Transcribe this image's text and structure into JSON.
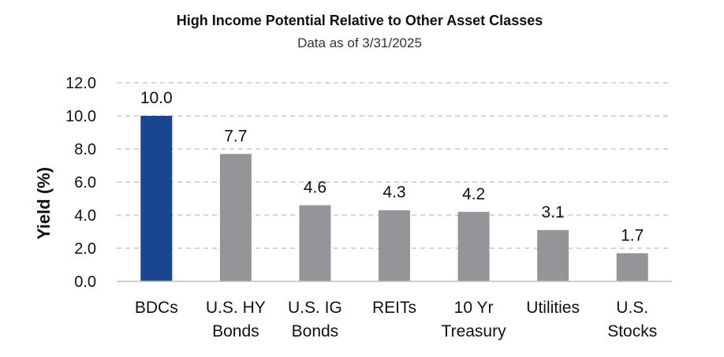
{
  "chart_data": {
    "type": "bar",
    "title": "High Income Potential Relative to Other Asset Classes",
    "subtitle": "Data as of 3/31/2025",
    "xlabel": "",
    "ylabel": "Yield (%)",
    "ylim": [
      0,
      12
    ],
    "yticks": [
      0,
      2,
      4,
      6,
      8,
      10,
      12
    ],
    "ytick_labels": [
      "0.0",
      "2.0",
      "4.0",
      "6.0",
      "8.0",
      "10.0",
      "12.0"
    ],
    "grid": true,
    "legend": "none",
    "categories": [
      [
        "BDCs"
      ],
      [
        "U.S. HY",
        "Bonds"
      ],
      [
        "U.S. IG",
        "Bonds"
      ],
      [
        "REITs"
      ],
      [
        "10 Yr",
        "Treasury"
      ],
      [
        "Utilities"
      ],
      [
        "U.S.",
        "Stocks"
      ]
    ],
    "values": [
      10.0,
      7.7,
      4.6,
      4.3,
      4.2,
      3.1,
      1.7
    ],
    "data_labels": [
      "10.0",
      "7.7",
      "4.6",
      "4.3",
      "4.2",
      "3.1",
      "1.7"
    ],
    "colors": {
      "highlight": "#1a4591",
      "bar": "#939598",
      "grid": "#c8c8c8",
      "axis": "#bfbfbf"
    },
    "highlight_index": 0
  }
}
